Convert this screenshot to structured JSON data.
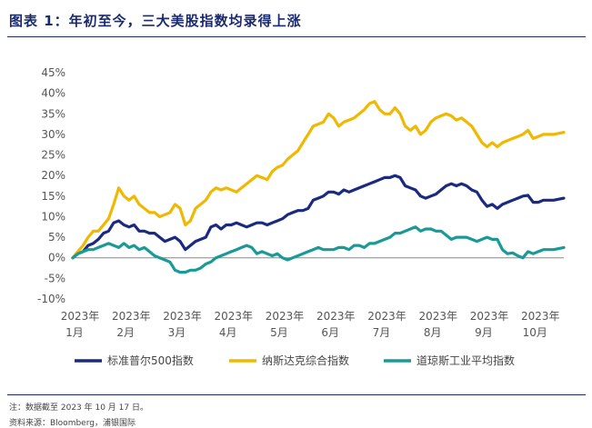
{
  "title": "图表 1：年初至今，三大美股指数均录得上涨",
  "notes": {
    "note": "注：数据截至 2023 年 10 月 17 日。",
    "source": "资料来源：Bloomberg，浦银国际"
  },
  "chart_data": {
    "type": "line",
    "y_tick_labels": [
      "-10%",
      "-5%",
      "0%",
      "5%",
      "10%",
      "15%",
      "20%",
      "25%",
      "30%",
      "35%",
      "40%",
      "45%"
    ],
    "ylim": [
      -10,
      45
    ],
    "x_tick_labels": [
      [
        "2023年",
        "1月"
      ],
      [
        "2023年",
        "2月"
      ],
      [
        "2023年",
        "3月"
      ],
      [
        "2023年",
        "4月"
      ],
      [
        "2023年",
        "5月"
      ],
      [
        "2023年",
        "6月"
      ],
      [
        "2023年",
        "7月"
      ],
      [
        "2023年",
        "8月"
      ],
      [
        "2023年",
        "9月"
      ],
      [
        "2023年",
        "10月"
      ]
    ],
    "legend_position": "bottom",
    "series": [
      {
        "name": "标准普尔500指数",
        "color": "#1a2a80",
        "x": [
          0,
          0.1,
          0.2,
          0.3,
          0.4,
          0.5,
          0.6,
          0.7,
          0.8,
          0.9,
          1.0,
          1.1,
          1.2,
          1.3,
          1.4,
          1.5,
          1.6,
          1.7,
          1.8,
          1.9,
          2.0,
          2.1,
          2.2,
          2.3,
          2.4,
          2.5,
          2.6,
          2.7,
          2.8,
          2.9,
          3.0,
          3.1,
          3.2,
          3.3,
          3.4,
          3.5,
          3.6,
          3.7,
          3.8,
          3.9,
          4.0,
          4.1,
          4.2,
          4.3,
          4.4,
          4.5,
          4.6,
          4.7,
          4.8,
          4.9,
          5.0,
          5.1,
          5.2,
          5.3,
          5.4,
          5.5,
          5.6,
          5.7,
          5.8,
          5.9,
          6.0,
          6.1,
          6.2,
          6.3,
          6.4,
          6.5,
          6.6,
          6.7,
          6.8,
          6.9,
          7.0,
          7.1,
          7.2,
          7.3,
          7.4,
          7.5,
          7.6,
          7.7,
          7.8,
          7.9,
          8.0,
          8.1,
          8.2,
          8.3,
          8.4,
          8.5,
          8.6,
          8.7,
          8.8,
          8.9,
          9.0,
          9.1,
          9.2,
          9.4,
          9.6
        ],
        "values": [
          0,
          1,
          1.5,
          3,
          3.5,
          4.5,
          6,
          6.5,
          8.5,
          9,
          8,
          7.5,
          8,
          6.5,
          6.5,
          6,
          6,
          5,
          4,
          4.5,
          5,
          4,
          2,
          3,
          4,
          4.5,
          5,
          7.5,
          8,
          7,
          8,
          8,
          8.5,
          8,
          7.5,
          8,
          8.5,
          8.5,
          8,
          8.5,
          9,
          9.5,
          10.5,
          11,
          11.5,
          11.5,
          12,
          14,
          14.5,
          15,
          16,
          16,
          15.5,
          16.5,
          16,
          16.5,
          17,
          17.5,
          18,
          18.5,
          19,
          19.5,
          19.5,
          20,
          19.5,
          17.5,
          17,
          16.5,
          15,
          14.5,
          15,
          15.5,
          16.5,
          17.5,
          18,
          17.5,
          18,
          17.5,
          16.5,
          16,
          14,
          12.5,
          13,
          12,
          13,
          13.5,
          14,
          14.5,
          15,
          15.2,
          13.5,
          13.5,
          14,
          14,
          14.5
        ]
      },
      {
        "name": "纳斯达克综合指数",
        "color": "#f0b800",
        "x": [
          0,
          0.1,
          0.2,
          0.3,
          0.4,
          0.5,
          0.6,
          0.7,
          0.8,
          0.9,
          1.0,
          1.1,
          1.2,
          1.3,
          1.4,
          1.5,
          1.6,
          1.7,
          1.8,
          1.9,
          2.0,
          2.1,
          2.2,
          2.3,
          2.4,
          2.5,
          2.6,
          2.7,
          2.8,
          2.9,
          3.0,
          3.1,
          3.2,
          3.3,
          3.4,
          3.5,
          3.6,
          3.7,
          3.8,
          3.9,
          4.0,
          4.1,
          4.2,
          4.3,
          4.4,
          4.5,
          4.6,
          4.7,
          4.8,
          4.9,
          5.0,
          5.1,
          5.2,
          5.3,
          5.4,
          5.5,
          5.6,
          5.7,
          5.8,
          5.9,
          6.0,
          6.1,
          6.2,
          6.3,
          6.4,
          6.5,
          6.6,
          6.7,
          6.8,
          6.9,
          7.0,
          7.1,
          7.2,
          7.3,
          7.4,
          7.5,
          7.6,
          7.7,
          7.8,
          7.9,
          8.0,
          8.1,
          8.2,
          8.3,
          8.4,
          8.5,
          8.6,
          8.7,
          8.8,
          8.9,
          9.0,
          9.1,
          9.2,
          9.4,
          9.6
        ],
        "values": [
          0,
          1.5,
          3,
          5,
          6.5,
          6.5,
          8,
          9.5,
          13,
          17,
          15,
          14,
          15,
          13,
          12,
          11,
          11,
          10,
          10.5,
          11,
          13,
          12,
          8,
          9,
          12,
          13,
          14,
          16,
          17,
          16.5,
          17,
          16.5,
          16,
          17,
          18,
          19,
          20,
          19.5,
          19,
          21,
          22,
          22.5,
          24,
          25,
          26,
          28,
          30,
          32,
          32.5,
          33,
          35,
          34,
          32,
          33,
          33.5,
          34,
          35,
          36,
          37.5,
          38,
          36,
          35,
          35,
          36.5,
          35,
          32,
          31,
          32,
          30,
          31,
          33,
          34,
          34.5,
          35,
          34.5,
          33.5,
          34,
          33,
          32,
          30,
          28,
          27,
          28,
          27,
          28,
          28.5,
          29,
          29.5,
          30,
          31,
          29,
          29.5,
          30,
          30,
          30.5
        ]
      },
      {
        "name": "道琼斯工业平均指数",
        "color": "#1a9a96",
        "x": [
          0,
          0.1,
          0.2,
          0.3,
          0.4,
          0.5,
          0.6,
          0.7,
          0.8,
          0.9,
          1.0,
          1.1,
          1.2,
          1.3,
          1.4,
          1.5,
          1.6,
          1.7,
          1.8,
          1.9,
          2.0,
          2.1,
          2.2,
          2.3,
          2.4,
          2.5,
          2.6,
          2.7,
          2.8,
          2.9,
          3.0,
          3.1,
          3.2,
          3.3,
          3.4,
          3.5,
          3.6,
          3.7,
          3.8,
          3.9,
          4.0,
          4.1,
          4.2,
          4.3,
          4.4,
          4.5,
          4.6,
          4.7,
          4.8,
          4.9,
          5.0,
          5.1,
          5.2,
          5.3,
          5.4,
          5.5,
          5.6,
          5.7,
          5.8,
          5.9,
          6.0,
          6.1,
          6.2,
          6.3,
          6.4,
          6.5,
          6.6,
          6.7,
          6.8,
          6.9,
          7.0,
          7.1,
          7.2,
          7.3,
          7.4,
          7.5,
          7.6,
          7.7,
          7.8,
          7.9,
          8.0,
          8.1,
          8.2,
          8.3,
          8.4,
          8.5,
          8.6,
          8.7,
          8.8,
          8.9,
          9.0,
          9.1,
          9.2,
          9.4,
          9.6
        ],
        "values": [
          0,
          1,
          1.5,
          2,
          2,
          2.5,
          3,
          3.5,
          3,
          2.5,
          3.5,
          2.5,
          3,
          2,
          2.5,
          1.5,
          0.5,
          0,
          -0.5,
          -1,
          -3,
          -3.5,
          -3.5,
          -3,
          -3,
          -2.5,
          -1.5,
          -1,
          0,
          0.5,
          1,
          1.5,
          2,
          2.5,
          3,
          2.5,
          1,
          1.5,
          1,
          0.5,
          1,
          0,
          -0.5,
          0,
          0.5,
          1,
          1.5,
          2,
          2.5,
          2,
          2,
          2,
          2.5,
          2.5,
          2,
          3,
          3,
          2.5,
          3.5,
          3.5,
          4,
          4.5,
          5,
          6,
          6,
          6.5,
          7,
          7.5,
          6.5,
          7,
          7,
          6.5,
          6.5,
          5.5,
          4.5,
          5,
          5,
          5,
          4.5,
          4,
          4.5,
          5,
          4.5,
          4.5,
          2,
          1,
          1.2,
          0.5,
          0,
          1.5,
          1,
          1.5,
          2,
          2,
          2.5
        ]
      }
    ]
  }
}
